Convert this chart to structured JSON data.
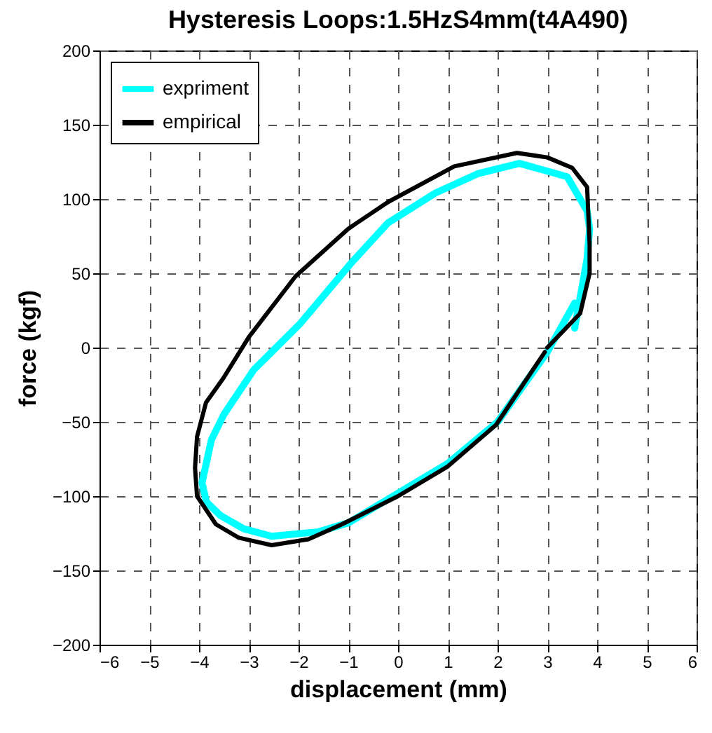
{
  "chart_data": {
    "type": "line",
    "title": "Hysteresis Loops:1.5HzS4mm(t4A490)",
    "xlabel": "displacement (mm)",
    "ylabel": "force (kgf)",
    "xlim": [
      -6,
      6
    ],
    "ylim": [
      -200,
      200
    ],
    "xticks": [
      -6,
      -5,
      -4,
      -3,
      -2,
      -1,
      0,
      1,
      2,
      3,
      4,
      5,
      6
    ],
    "yticks": [
      -200,
      -150,
      -100,
      -50,
      0,
      50,
      100,
      150,
      200
    ],
    "grid": true,
    "legend": "top left",
    "line_style": "solid",
    "marker": "none",
    "series": [
      {
        "name": "expriment",
        "color": "#00ffff",
        "x": [
          3.55,
          3.8,
          3.85,
          3.8,
          3.4,
          2.44,
          1.6,
          0.75,
          -0.2,
          -0.94,
          -1.97,
          -2.9,
          -3.5,
          -3.75,
          -3.94,
          -3.85,
          -3.57,
          -3.1,
          -2.54,
          -1.6,
          -1.0,
          0.0,
          1.0,
          2.0,
          3.0,
          3.55
        ],
        "values": [
          13,
          60,
          80,
          92,
          115,
          124,
          117,
          104,
          84,
          57,
          16,
          -15,
          -45,
          -62,
          -91,
          -104,
          -113,
          -122,
          -127,
          -124,
          -118,
          -98,
          -78,
          -50,
          -3,
          30
        ]
      },
      {
        "name": "empirical",
        "color": "#000000",
        "x": [
          3.0,
          3.66,
          3.85,
          3.85,
          3.8,
          3.5,
          3.0,
          2.39,
          1.13,
          -0.2,
          -1.0,
          -2.06,
          -3.0,
          -3.5,
          -3.86,
          -4.04,
          -4.08,
          -4.04,
          -3.66,
          -3.2,
          -2.54,
          -1.8,
          -1.13,
          0.0,
          1.0,
          1.97,
          2.95
        ],
        "values": [
          0,
          23,
          50,
          70,
          108,
          121,
          128,
          131,
          122,
          98,
          80,
          48,
          7,
          -20,
          -37,
          -60,
          -81,
          -100,
          -119,
          -128,
          -133,
          -129,
          -119,
          -100,
          -80,
          -52,
          -3
        ]
      }
    ]
  }
}
